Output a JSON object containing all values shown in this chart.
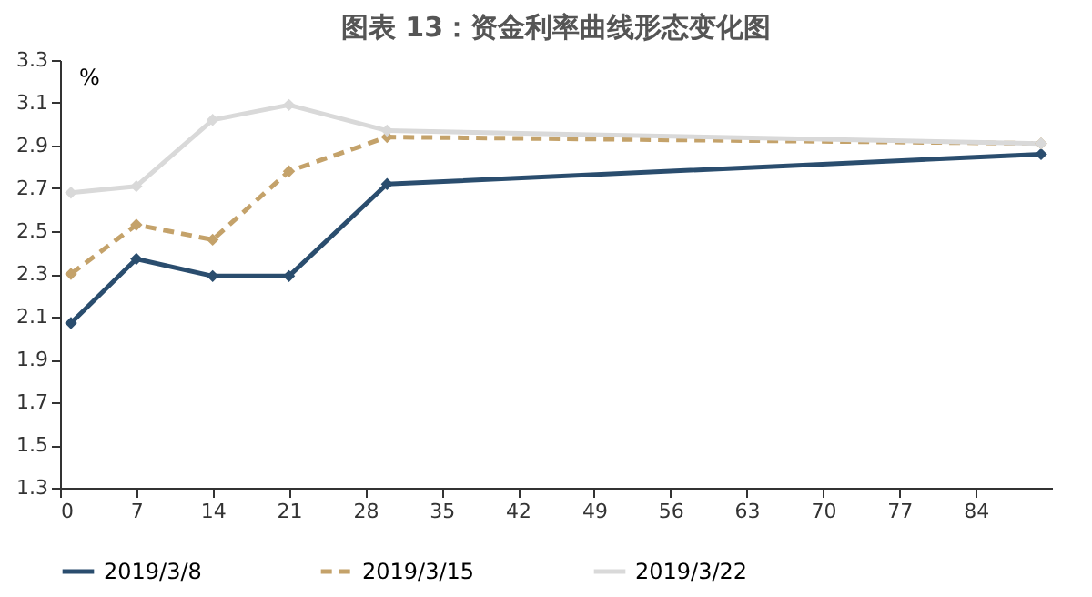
{
  "chart_data": {
    "type": "line",
    "title": "图表 13：资金利率曲线形态变化图",
    "ylabel": "%",
    "x": [
      1,
      7,
      14,
      21,
      30,
      90
    ],
    "series": [
      {
        "name": "2019/3/8",
        "color": "#2a4d6e",
        "values": [
          2.07,
          2.37,
          2.29,
          2.29,
          2.72,
          2.86
        ],
        "line_style": "solid"
      },
      {
        "name": "2019/3/15",
        "color": "#c4a26a",
        "values": [
          2.3,
          2.53,
          2.46,
          2.78,
          2.94,
          2.91
        ],
        "line_style": "dashed"
      },
      {
        "name": "2019/3/22",
        "color": "#d9d9d9",
        "values": [
          2.68,
          2.71,
          3.02,
          3.09,
          2.97,
          2.91
        ],
        "line_style": "solid"
      }
    ],
    "xlim": [
      0,
      91
    ],
    "xticks": [
      0,
      7,
      14,
      21,
      28,
      35,
      42,
      49,
      56,
      63,
      70,
      77,
      84
    ],
    "ylim": [
      1.3,
      3.3
    ],
    "yticks": [
      1.3,
      1.5,
      1.7,
      1.9,
      2.1,
      2.3,
      2.5,
      2.7,
      2.9,
      3.1,
      3.3
    ],
    "grid": false,
    "legend": "bottom",
    "marker": "diamond"
  }
}
